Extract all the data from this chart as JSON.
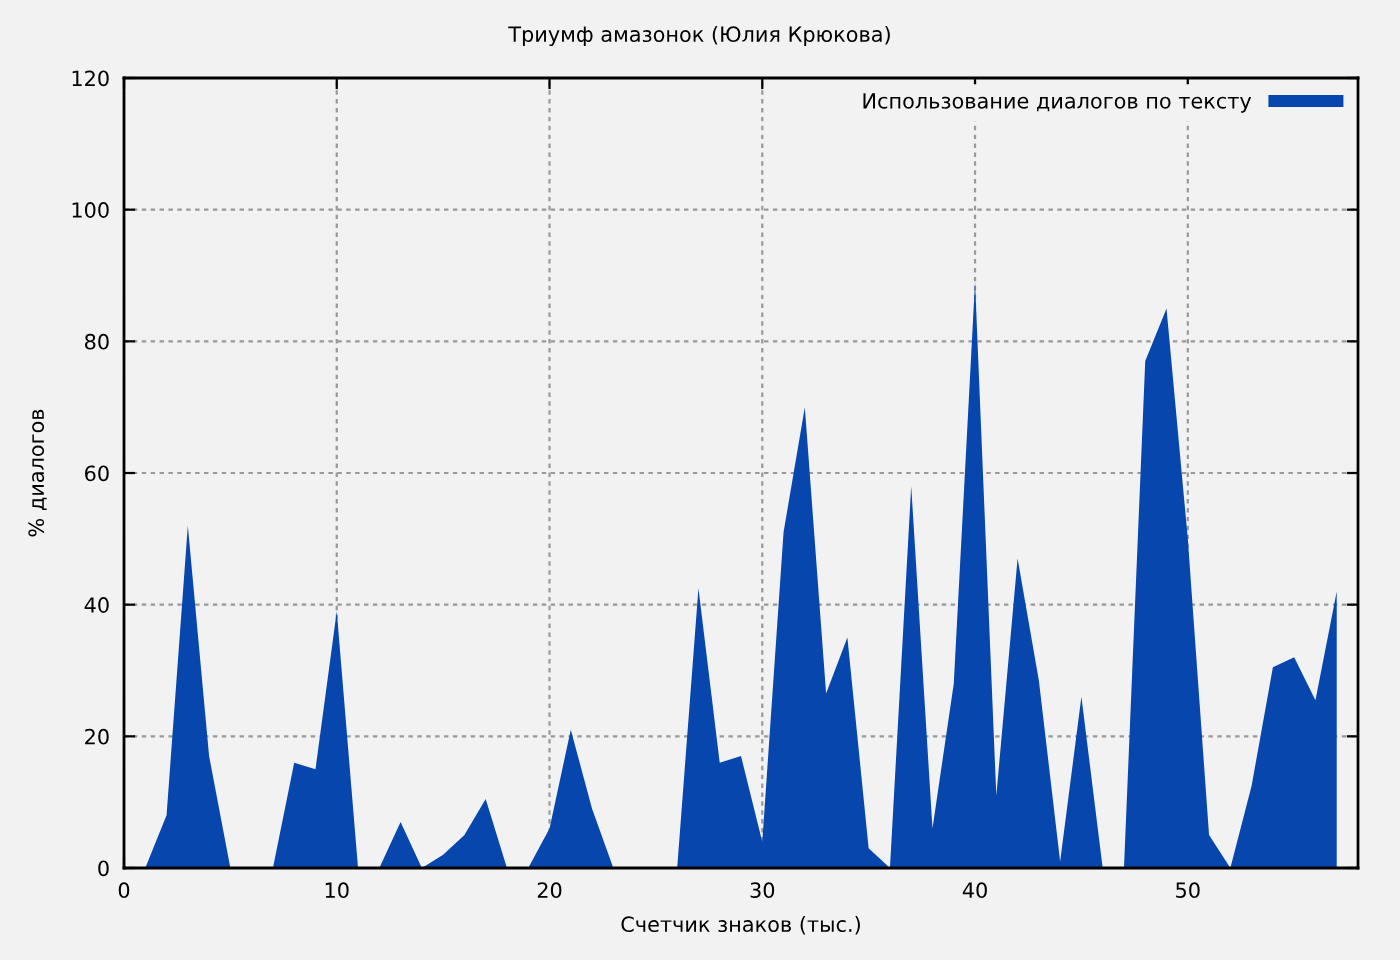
{
  "chart_data": {
    "type": "area",
    "title": "Триумф амазонок (Юлия Крюкова)",
    "xlabel": "Счетчик знаков (тыс.)",
    "ylabel": "% диалогов",
    "x": [
      1,
      2,
      3,
      4,
      5,
      6,
      7,
      8,
      9,
      10,
      11,
      12,
      13,
      14,
      15,
      16,
      17,
      18,
      19,
      20,
      21,
      22,
      23,
      24,
      25,
      26,
      27,
      28,
      29,
      30,
      31,
      32,
      33,
      34,
      35,
      36,
      37,
      38,
      39,
      40,
      41,
      42,
      43,
      44,
      45,
      46,
      47,
      48,
      49,
      50,
      51,
      52,
      53,
      54,
      55,
      56,
      57
    ],
    "series": [
      {
        "name": "Использование диалогов по тексту",
        "color": "#0646ad",
        "values": [
          0,
          8,
          52,
          17,
          0,
          0,
          0,
          16,
          15,
          39,
          0,
          0,
          7,
          0,
          2,
          5,
          10.5,
          0,
          0,
          6,
          21,
          9,
          0,
          0,
          0,
          0,
          42.5,
          16,
          17,
          4,
          51,
          70,
          26.5,
          35,
          3,
          0,
          58,
          6,
          28,
          89,
          11,
          47,
          28.5,
          1,
          26,
          0,
          0,
          77,
          85,
          50,
          5,
          0,
          12.5,
          30.5,
          32,
          25.5,
          42
        ]
      }
    ],
    "xlim": [
      0,
      58
    ],
    "ylim": [
      0,
      120
    ],
    "xticks": [
      0,
      10,
      20,
      30,
      40,
      50
    ],
    "yticks": [
      0,
      20,
      40,
      60,
      80,
      100,
      120
    ],
    "grid": true,
    "legend": "top right"
  }
}
